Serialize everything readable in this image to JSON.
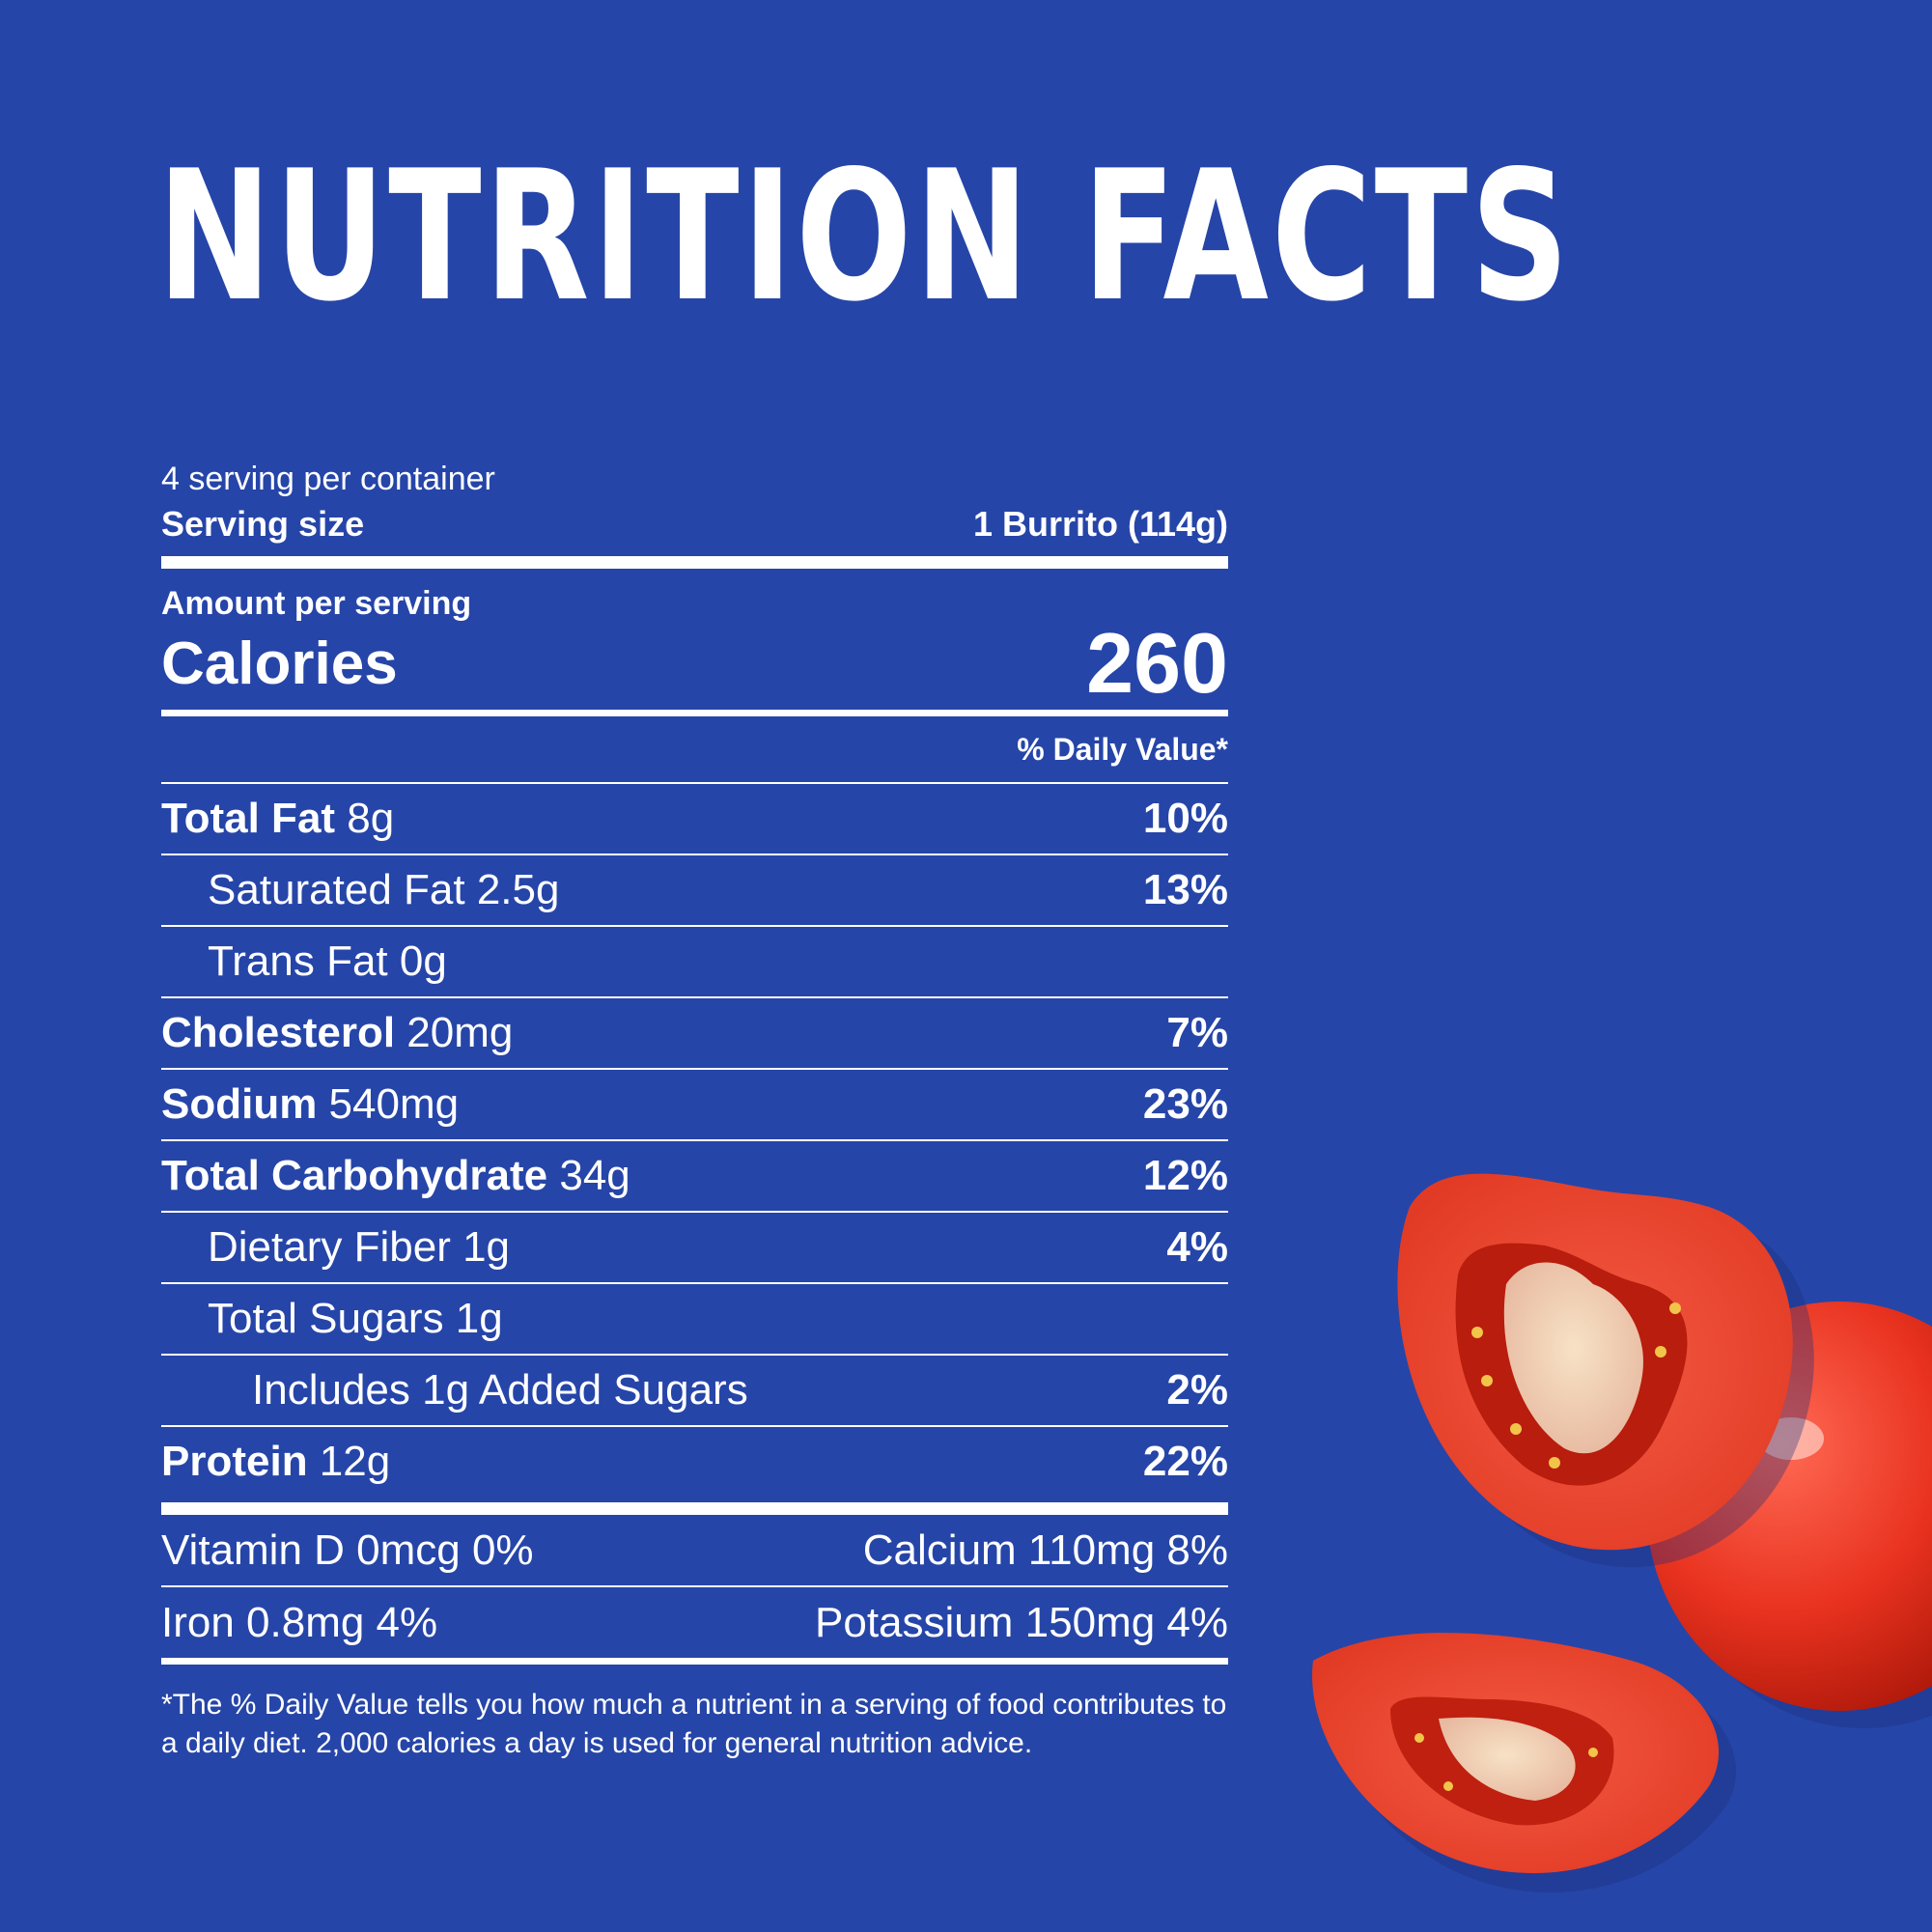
{
  "title": "NUTRITION FACTS",
  "servings_per_container": "4 serving per container",
  "serving_size_label": "Serving size",
  "serving_size_value": "1 Burrito (114g)",
  "amount_per_serving": "Amount per serving",
  "calories_label": "Calories",
  "calories_value": "260",
  "daily_value_header": "% Daily Value*",
  "nutrients": [
    {
      "name": "Total Fat",
      "amount": " 8g",
      "pct": "10%"
    },
    {
      "name": "Saturated Fat 2.5g",
      "amount": "",
      "pct": "13%"
    },
    {
      "name": "Trans Fat 0g",
      "amount": "",
      "pct": ""
    },
    {
      "name": "Cholesterol",
      "amount": " 20mg",
      "pct": "7%"
    },
    {
      "name": "Sodium",
      "amount": " 540mg",
      "pct": "23%"
    },
    {
      "name": "Total Carbohydrate",
      "amount": " 34g",
      "pct": "12%"
    },
    {
      "name": "Dietary Fiber 1g",
      "amount": "",
      "pct": "4%"
    },
    {
      "name": "Total Sugars 1g",
      "amount": "",
      "pct": ""
    },
    {
      "name": "Includes 1g Added Sugars",
      "amount": "",
      "pct": "2%"
    },
    {
      "name": "Protein",
      "amount": " 12g",
      "pct": "22%"
    }
  ],
  "vitamins": [
    {
      "left": "Vitamin D 0mcg 0%",
      "right": "Calcium 110mg 8%"
    },
    {
      "left": "Iron 0.8mg 4%",
      "right": "Potassium 150mg 4%"
    }
  ],
  "footnote": "*The % Daily Value tells you how much a nutrient in a serving of food contributes to a daily diet. 2,000 calories a day is used for general nutrition advice.",
  "colors": {
    "background": "#2645a8",
    "text": "#ffffff",
    "tomato": "#e8321f"
  }
}
